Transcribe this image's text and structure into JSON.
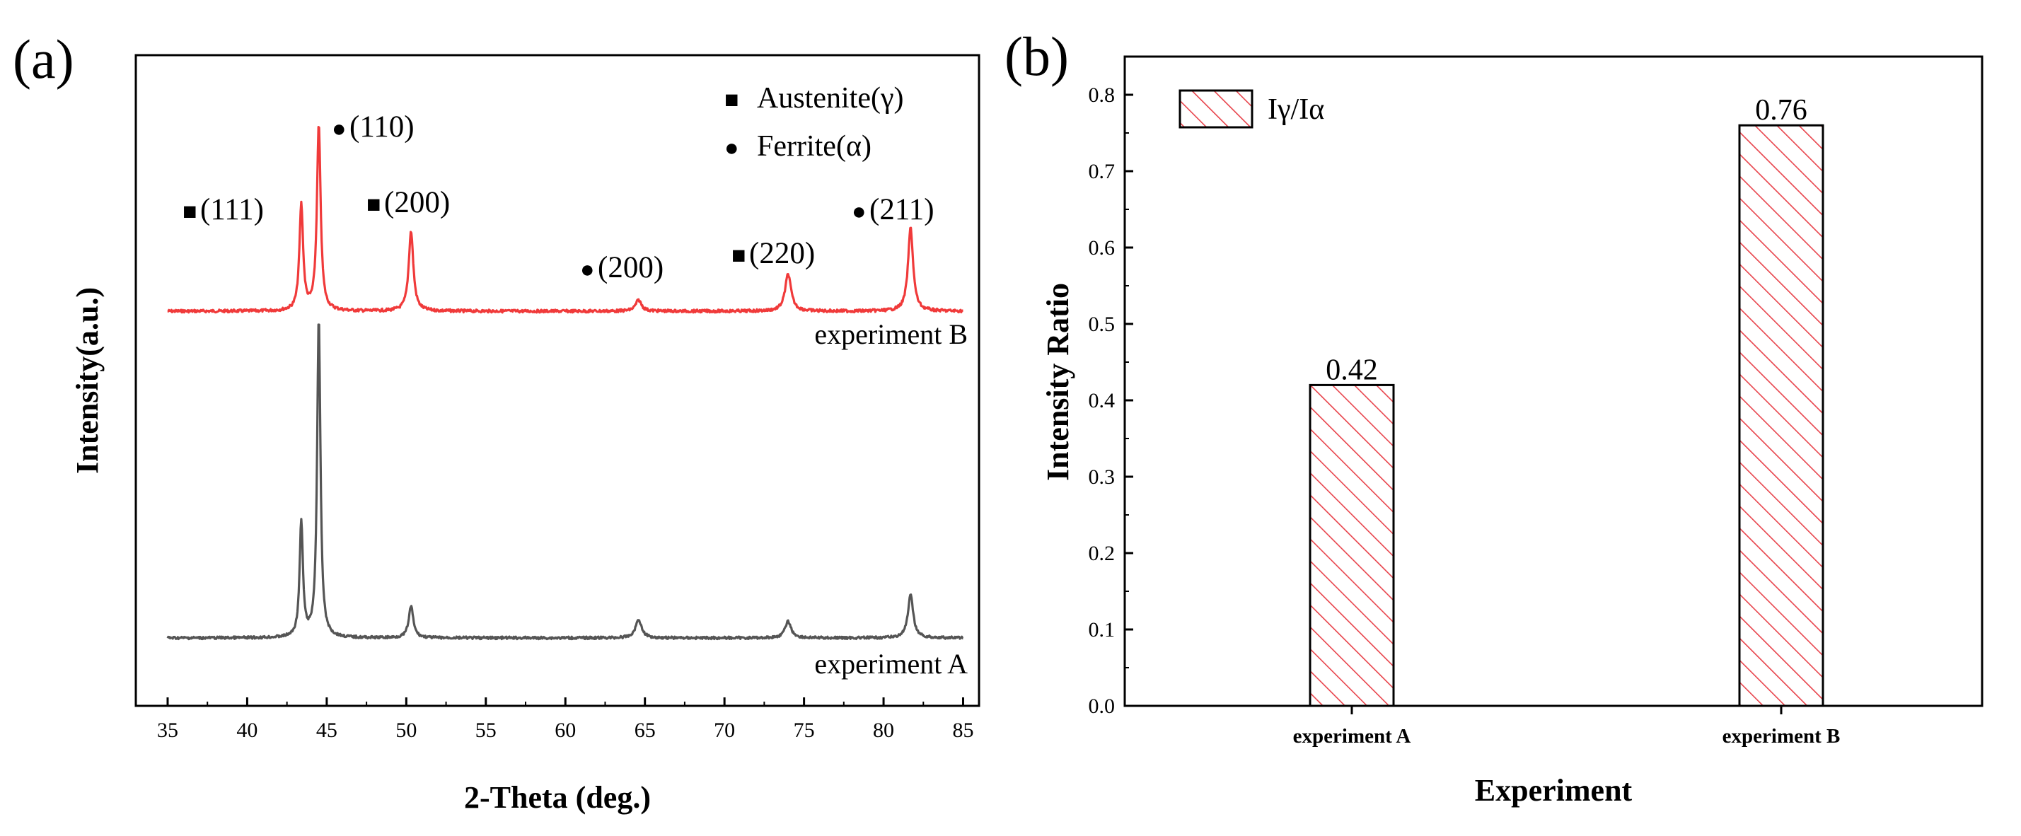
{
  "panel_a_letter": "(a)",
  "panel_b_letter": "(b)",
  "colors": {
    "experiment_b": "#f03a3a",
    "experiment_a": "#555555",
    "hatch": "#e8434b",
    "axis": "#000000"
  },
  "chart_data": [
    {
      "type": "line",
      "xlabel": "2-Theta (deg.)",
      "ylabel": "Intensity(a.u.)",
      "xlim": [
        33,
        86
      ],
      "xticks": [
        35,
        40,
        45,
        50,
        55,
        60,
        65,
        70,
        75,
        80,
        85
      ],
      "y_tick_labels": false,
      "grid": false,
      "legend": {
        "placement": "top-right",
        "entries": [
          {
            "marker": "square",
            "symbol": "■",
            "label": "Austenite(γ)"
          },
          {
            "marker": "circle",
            "symbol": "●",
            "label": "Ferrite(α)"
          }
        ]
      },
      "series": [
        {
          "name": "experiment B",
          "color": "#f03a3a",
          "baseline": 0.0,
          "peaks": [
            {
              "x": 43.4,
              "height": 0.57,
              "width": 0.28
            },
            {
              "x": 44.5,
              "height": 1.0,
              "width": 0.28
            },
            {
              "x": 50.3,
              "height": 0.43,
              "width": 0.35
            },
            {
              "x": 64.6,
              "height": 0.06,
              "width": 0.45
            },
            {
              "x": 74.0,
              "height": 0.2,
              "width": 0.45
            },
            {
              "x": 81.7,
              "height": 0.45,
              "width": 0.38
            }
          ]
        },
        {
          "name": "experiment A",
          "color": "#555555",
          "baseline": 0.0,
          "peaks": [
            {
              "x": 43.4,
              "height": 0.62,
              "width": 0.25
            },
            {
              "x": 44.5,
              "height": 1.72,
              "width": 0.25
            },
            {
              "x": 50.3,
              "height": 0.17,
              "width": 0.35
            },
            {
              "x": 64.6,
              "height": 0.1,
              "width": 0.45
            },
            {
              "x": 74.0,
              "height": 0.09,
              "width": 0.45
            },
            {
              "x": 81.7,
              "height": 0.23,
              "width": 0.4
            }
          ]
        }
      ],
      "annotations": [
        {
          "symbol": "■",
          "label": "(111)"
        },
        {
          "symbol": "●",
          "label": "(110)"
        },
        {
          "symbol": "■",
          "label": "(200)"
        },
        {
          "symbol": "●",
          "label": "(200)"
        },
        {
          "symbol": "■",
          "label": "(220)"
        },
        {
          "symbol": "●",
          "label": "(211)"
        }
      ]
    },
    {
      "type": "bar",
      "xlabel": "Experiment",
      "ylabel": "Intensity Ratio",
      "ylim": [
        0,
        0.85
      ],
      "yticks": [
        "0.0",
        "0.1",
        "0.2",
        "0.3",
        "0.4",
        "0.5",
        "0.6",
        "0.7",
        "0.8"
      ],
      "categories": [
        "experiment A",
        "experiment B"
      ],
      "values": [
        0.42,
        0.76
      ],
      "value_labels": [
        "0.42",
        "0.76"
      ],
      "hatch": "diagonal",
      "grid": false,
      "legend": {
        "placement": "top-left",
        "entries": [
          {
            "label": "Iγ/Iα"
          }
        ]
      }
    }
  ]
}
